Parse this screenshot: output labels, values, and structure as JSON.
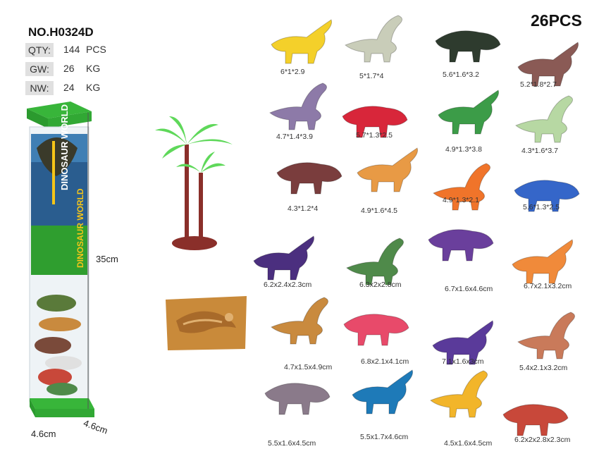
{
  "product": {
    "model": "NO.H0324D",
    "count": "26PCS",
    "specs": [
      {
        "label": "QTY:",
        "value": "144",
        "unit": "PCS"
      },
      {
        "label": "GW:",
        "value": "26",
        "unit": "KG"
      },
      {
        "label": "NW:",
        "value": "24",
        "unit": "KG"
      }
    ]
  },
  "tube": {
    "height": "35cm",
    "width": "4.6cm",
    "depth": "4.6cm",
    "logo_text": "DINOSAUR WORLD",
    "brand_colors": {
      "green": "#2f9e2f",
      "blue": "#2a5d8f",
      "yellow": "#f5c518"
    }
  },
  "figures": [
    {
      "size": "6*1*2.9",
      "color": "#f4d02a"
    },
    {
      "size": "5*1.7*4",
      "color": "#c9cdb9"
    },
    {
      "size": "5.6*1.6*3.2",
      "color": "#2e3b2e"
    },
    {
      "size": "5.2*1.8*2.7",
      "color": "#8a5a55"
    },
    {
      "size": "4.7*1.4*3.9",
      "color": "#8d7aa8"
    },
    {
      "size": "5.7*1.3*2.5",
      "color": "#d8263a"
    },
    {
      "size": "4.9*1.3*3.8",
      "color": "#3c9c48"
    },
    {
      "size": "4.3*1.6*3.7",
      "color": "#b7d8a3"
    },
    {
      "size": "4.3*1.2*4",
      "color": "#7a3d3d"
    },
    {
      "size": "4.9*1.6*4.5",
      "color": "#e89a45"
    },
    {
      "size": "4.9*1.3*2.1",
      "color": "#f0742a"
    },
    {
      "size": "5.6*1.3*2.5",
      "color": "#3566c9"
    },
    {
      "size": "6.2x2.4x2.3cm",
      "color": "#4b2f7f"
    },
    {
      "size": "6.3x2x2.8cm",
      "color": "#4f8a4a"
    },
    {
      "size": "6.7x1.6x4.6cm",
      "color": "#6a3f9c"
    },
    {
      "size": "6.7x2.1x3.2cm",
      "color": "#f08a3a"
    },
    {
      "size": "4.7x1.5x4.9cm",
      "color": "#c98a3e"
    },
    {
      "size": "6.8x2.1x4.1cm",
      "color": "#e84a6a"
    },
    {
      "size": "7.1x1.6x3cm",
      "color": "#5a3a9a"
    },
    {
      "size": "5.4x2.1x3.2cm",
      "color": "#c97a5a"
    },
    {
      "size": "5.5x1.6x4.5cm",
      "color": "#8a7a8a"
    },
    {
      "size": "5.5x1.7x4.6cm",
      "color": "#1e7ab8"
    },
    {
      "size": "4.5x1.6x4.5cm",
      "color": "#f2b52a"
    },
    {
      "size": "6.2x2x2.8x2.3cm",
      "color": "#c8483a"
    }
  ],
  "accessories": {
    "tree_color": "#5fd85a",
    "base_color": "#8a2f2a",
    "fossil_color": "#c98a3a"
  }
}
